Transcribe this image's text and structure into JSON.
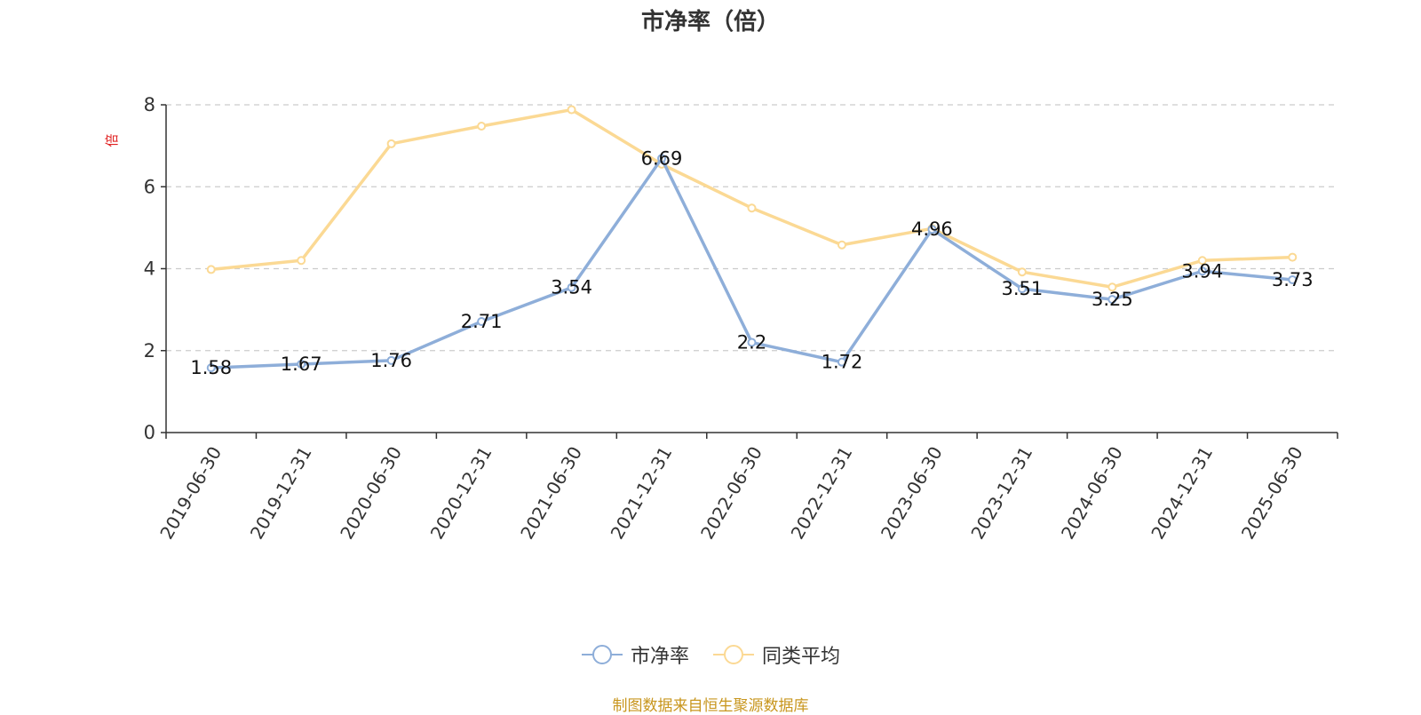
{
  "chart_data": {
    "type": "line",
    "title": "市净率（倍）",
    "ylabel": "倍",
    "ylim": [
      0,
      8
    ],
    "yticks": [
      0,
      2,
      4,
      6,
      8
    ],
    "grid": true,
    "legend_position": "bottom-center",
    "categories": [
      "2019-06-30",
      "2019-12-31",
      "2020-06-30",
      "2020-12-31",
      "2021-06-30",
      "2021-12-31",
      "2022-06-30",
      "2022-12-31",
      "2023-06-30",
      "2023-12-31",
      "2024-06-30",
      "2024-12-31",
      "2025-06-30"
    ],
    "series": [
      {
        "name": "市净率",
        "color": "#8eaed9",
        "values": [
          1.58,
          1.67,
          1.76,
          2.71,
          3.54,
          6.69,
          2.2,
          1.72,
          4.96,
          3.51,
          3.25,
          3.94,
          3.73
        ],
        "labels": [
          "1.58",
          "1.67",
          "1.76",
          "2.71",
          "3.54",
          "6.69",
          "2.2",
          "1.72",
          "4.96",
          "3.51",
          "3.25",
          "3.94",
          "3.73"
        ]
      },
      {
        "name": "同类平均",
        "color": "#fbd994",
        "values": [
          3.98,
          4.2,
          7.05,
          7.48,
          7.88,
          6.55,
          5.48,
          4.58,
          4.98,
          3.92,
          3.55,
          4.2,
          4.28
        ]
      }
    ]
  },
  "source_note": "制图数据来自恒生聚源数据库",
  "colors": {
    "title": "#333333",
    "axis": "#333333",
    "grid": "#cccccc",
    "ylabel": "#e02020",
    "source": "#c8961e"
  }
}
